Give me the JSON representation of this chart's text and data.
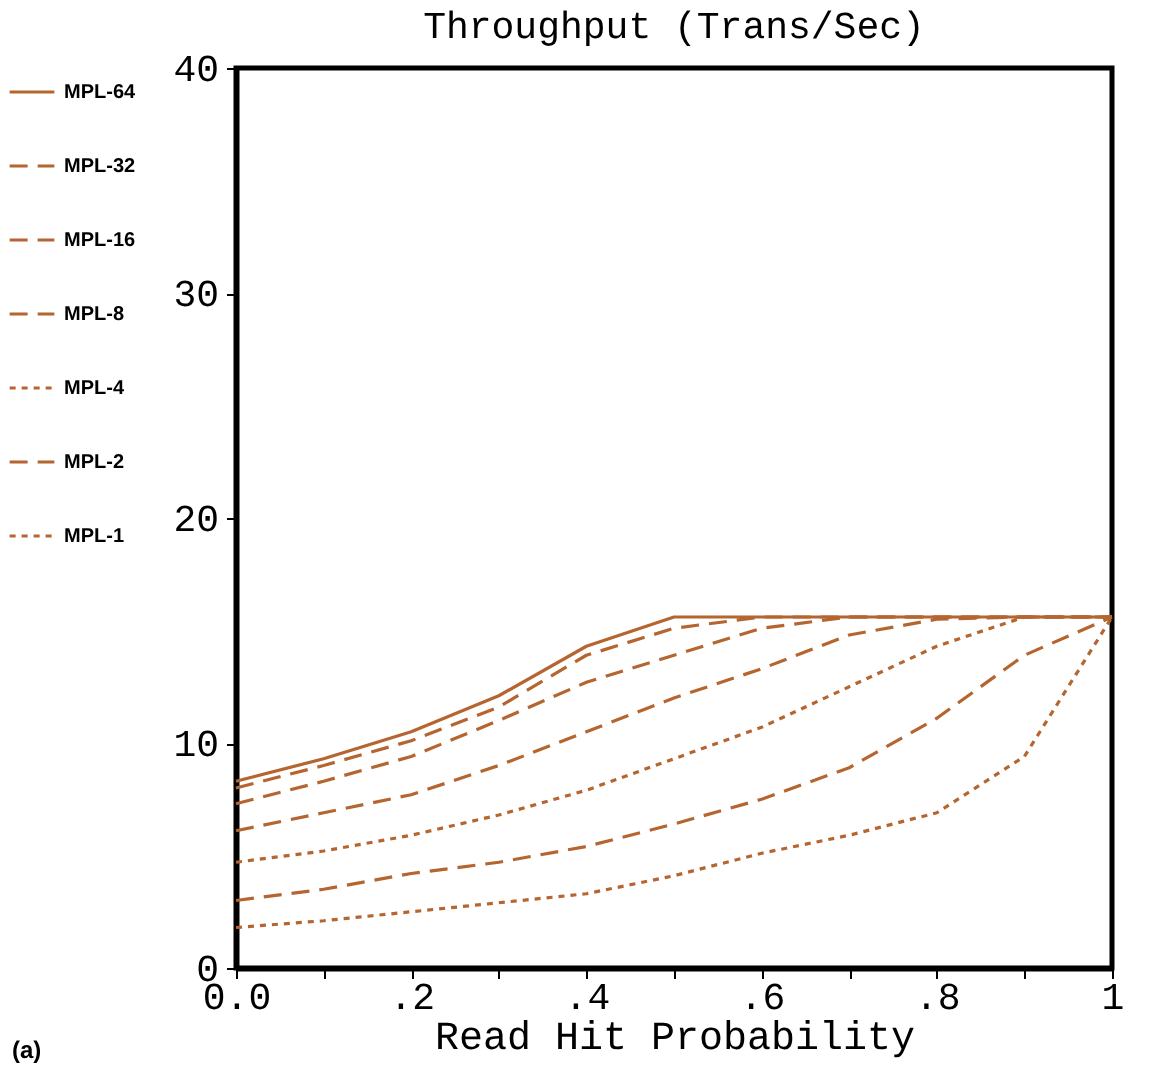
{
  "chart_data": {
    "type": "line",
    "title": "Throughput (Trans/Sec)",
    "xlabel": "Read Hit Probability",
    "x": [
      0,
      0.1,
      0.2,
      0.3,
      0.4,
      0.5,
      0.6,
      0.7,
      0.8,
      0.9,
      1
    ],
    "series": [
      {
        "name": "MPL-64",
        "color": "#b5652f",
        "line_style": "solid",
        "values": [
          8.3,
          9.3,
          10.5,
          12.1,
          14.3,
          15.6,
          15.6,
          15.6,
          15.6,
          15.6,
          15.6
        ]
      },
      {
        "name": "MPL-32",
        "color": "#b5652f",
        "line_style": "dashed",
        "values": [
          8.0,
          9.0,
          10.1,
          11.6,
          13.9,
          15.1,
          15.6,
          15.6,
          15.6,
          15.6,
          15.6
        ]
      },
      {
        "name": "MPL-16",
        "color": "#b5652f",
        "line_style": "dashed",
        "values": [
          7.3,
          8.3,
          9.4,
          11.0,
          12.7,
          13.9,
          15.1,
          15.6,
          15.6,
          15.6,
          15.6
        ]
      },
      {
        "name": "MPL-8",
        "color": "#b5652f",
        "line_style": "dashed",
        "values": [
          6.1,
          6.9,
          7.7,
          9.0,
          10.5,
          12.0,
          13.3,
          14.8,
          15.5,
          15.6,
          15.6
        ]
      },
      {
        "name": "MPL-4",
        "color": "#b5652f",
        "line_style": "dotted",
        "values": [
          4.7,
          5.2,
          5.9,
          6.8,
          7.9,
          9.3,
          10.7,
          12.5,
          14.3,
          15.6,
          15.6
        ]
      },
      {
        "name": "MPL-2",
        "color": "#b5652f",
        "line_style": "dashed",
        "values": [
          3.0,
          3.5,
          4.2,
          4.7,
          5.4,
          6.4,
          7.5,
          8.9,
          11.1,
          13.9,
          15.6
        ]
      },
      {
        "name": "MPL-1",
        "color": "#b5652f",
        "line_style": "dotted",
        "values": [
          1.8,
          2.1,
          2.5,
          2.9,
          3.3,
          4.1,
          5.1,
          5.9,
          6.9,
          9.4,
          15.6
        ]
      }
    ],
    "xlim": [
      0,
      1
    ],
    "xticks": [
      {
        "value": 0,
        "label": "0.0"
      },
      {
        "value": 0.1,
        "label": null
      },
      {
        "value": 0.2,
        "label": ".2"
      },
      {
        "value": 0.3,
        "label": null
      },
      {
        "value": 0.4,
        "label": ".4"
      },
      {
        "value": 0.5,
        "label": null
      },
      {
        "value": 0.6,
        "label": ".6"
      },
      {
        "value": 0.7,
        "label": null
      },
      {
        "value": 0.8,
        "label": ".8"
      },
      {
        "value": 0.9,
        "label": null
      },
      1
    ],
    "ylim": [
      0,
      40
    ],
    "yticks": [
      0,
      10,
      20,
      30,
      40
    ],
    "grid": false,
    "legend": "left",
    "annotations": [
      "(a)"
    ]
  }
}
